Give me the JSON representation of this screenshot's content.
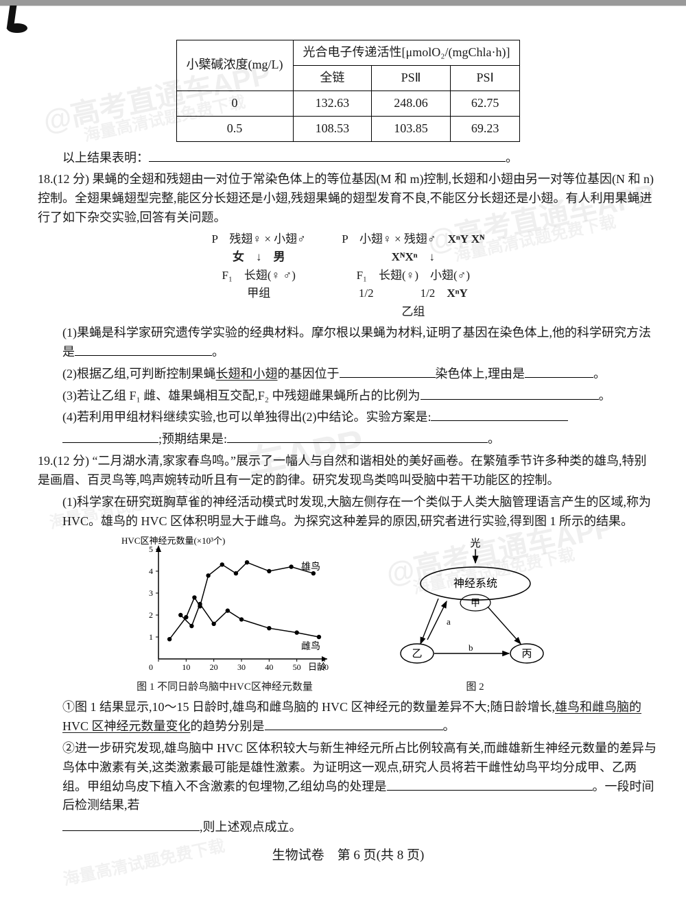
{
  "watermarks": {
    "brand": "@高考直通车APP",
    "sub": "海量高清试题免费下载"
  },
  "table": {
    "header_rowspan": "小檗碱浓度(mg/L)",
    "header_colspan": "光合电子传递活性[μmolO₂/(mgChla·h)]",
    "cols": [
      "全链",
      "PSⅡ",
      "PSⅠ"
    ],
    "rows": [
      {
        "conc": "0",
        "vals": [
          "132.63",
          "248.06",
          "62.75"
        ]
      },
      {
        "conc": "0.5",
        "vals": [
          "108.53",
          "103.85",
          "69.23"
        ]
      }
    ]
  },
  "text": {
    "result_label": "以上结果表明：",
    "q18": "18.(12 分) 果蝇的全翅和残翅由一对位于常染色体上的等位基因(M 和 m)控制,长翅和小翅由另一对等位基因(N 和 n)控制。全翅果蝇翅型完整,能区分长翅还是小翅,残翅果蝇的翅型发育不良,不能区分长翅还是小翅。有人利用果蝇进行了如下杂交实验,回答有关问题。",
    "cross": {
      "left_p": "P　残翅♀ × 小翅♂",
      "left_f1": "F₁　长翅(♀ ♂)",
      "left_tag": "甲组",
      "right_p": "P　小翅♀ × 残翅♂",
      "right_f1a": "F₁　长翅(♀)　小翅(♂)",
      "right_f1b": "1/2　　　　1/2",
      "right_tag": "乙组",
      "hand1": "女",
      "hand2": "男",
      "hand3": "X",
      "hand4": "XᴺXⁿ",
      "hand5": "XⁿY  Xᴺ",
      "hand6": "Xᴺ",
      "hand7": "XⁿY"
    },
    "q18_1": "(1)果蝇是科学家研究遗传学实验的经典材料。摩尔根以果蝇为材料,证明了基因在染色体上,他的科学研究方法是",
    "q18_2_a": "(2)根据乙组,可判断控制果蝇",
    "q18_2_u": "长翅和小翅",
    "q18_2_b": "的基因位于",
    "q18_2_c": "染色体上,理由是",
    "q18_3": "(3)若让乙组 F₁ 雌、雄果蝇相互交配,F₂ 中残翅雌果蝇所占的比例为",
    "q18_4": "(4)若利用甲组材料继续实验,也可以单独得出(2)中结论。实验方案是:",
    "q18_4b": ";预期结果是:",
    "q19": "19.(12 分) “二月湖水清,家家春鸟鸣。”展示了一幅人与自然和谐相处的美好画卷。在繁殖季节许多种类的雄鸟,特别是画眉、百灵鸟等,鸣声婉转动听且有一定的韵律。研究发现鸟类鸣叫受脑中若干功能区的控制。",
    "q19_1": "(1)科学家在研究斑胸草雀的神经活动模式时发现,大脑左侧存在一个类似于人类大脑管理语言产生的区域,称为 HVC。雄鸟的 HVC 区体积明显大于雌鸟。为探究这种差异的原因,研究者进行实验,得到图 1 所示的结果。",
    "chart": {
      "ylabel": "HVC区神经元数量(×10³个)",
      "xlabel": "日龄",
      "xmax": 60,
      "ymax": 5,
      "xticks": [
        0,
        10,
        20,
        30,
        40,
        50,
        60
      ],
      "yticks": [
        1,
        2,
        3,
        4,
        5
      ],
      "male_label": "雄鸟",
      "female_label": "雌鸟",
      "caption": "图 1 不同日龄鸟脑中HVC区神经元数量",
      "male": [
        [
          4,
          0.9
        ],
        [
          10,
          1.9
        ],
        [
          13,
          2.8
        ],
        [
          15,
          2.4
        ],
        [
          18,
          3.8
        ],
        [
          23,
          4.3
        ],
        [
          28,
          3.9
        ],
        [
          32,
          4.4
        ],
        [
          40,
          4.0
        ],
        [
          48,
          4.2
        ],
        [
          56,
          3.9
        ]
      ],
      "female": [
        [
          8,
          2.0
        ],
        [
          12,
          1.5
        ],
        [
          15,
          2.5
        ],
        [
          20,
          1.6
        ],
        [
          25,
          2.2
        ],
        [
          30,
          1.8
        ],
        [
          40,
          1.4
        ],
        [
          50,
          1.2
        ],
        [
          58,
          1.0
        ]
      ]
    },
    "diagram": {
      "light": "光",
      "nerve": "神经系统",
      "jia": "甲",
      "yi": "乙",
      "bing": "丙",
      "a": "a",
      "b": "b",
      "caption": "图 2"
    },
    "q19_c1a": "①图 1 结果显示,10～15 日龄时,雄鸟和雌鸟脑的 HVC 区神经元的数量差异不大;随日龄增长,",
    "q19_c1u": "雄鸟和雌鸟脑的 HVC 区神经元数量变化",
    "q19_c1b": "的趋势分别是",
    "q19_c2": "②进一步研究发现,雄鸟脑中 HVC 区体积较大与新生神经元所占比例较高有关,而雌雄新生神经元数量的差异与鸟体中激素有关,这类激素最可能是雄性激素。为证明这一观点,研究人员将若干雌性幼鸟平均分成甲、乙两组。甲组幼鸟皮下植入不含激素的包埋物,乙组幼鸟的处理是",
    "q19_c2b": "。一段时间后检测结果,若",
    "q19_c2c": ",则上述观点成立。"
  },
  "footer": "生物试卷　第 6 页(共 8 页)"
}
